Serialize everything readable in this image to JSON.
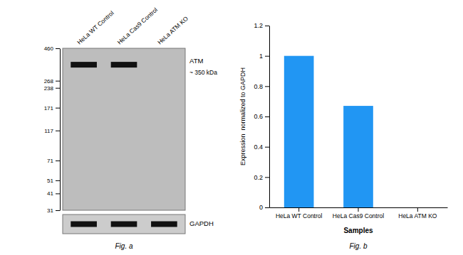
{
  "chart_data": [
    {
      "type": "blot",
      "title": "Fig. a",
      "categories": [
        "HeLa WT Control",
        "HeLa Cas9 Control",
        "HeLa ATM KO"
      ],
      "values": [
        350,
        350,
        null
      ],
      "color": "#111111",
      "ylim": [
        31,
        460
      ],
      "yticks": [
        460,
        268,
        238,
        171,
        117,
        71,
        51,
        41,
        31
      ],
      "log": "y",
      "annotations": [
        "ATM",
        "~ 350 kDa",
        "GAPDH"
      ]
    },
    {
      "type": "bar",
      "title": "Fig. b",
      "categories": [
        "HeLa WT Control",
        "HeLa Cas9 Control",
        "HeLa ATM KO"
      ],
      "values": [
        1.0,
        0.67,
        0.0
      ],
      "color": "#2196F3",
      "xlabel": "Samples",
      "ylabel": "Expression  normalized to GAPDH",
      "ylim": [
        0,
        1.2
      ],
      "yticks": [
        0,
        0.2,
        0.4,
        0.6,
        0.8,
        1.0,
        1.2
      ]
    }
  ]
}
